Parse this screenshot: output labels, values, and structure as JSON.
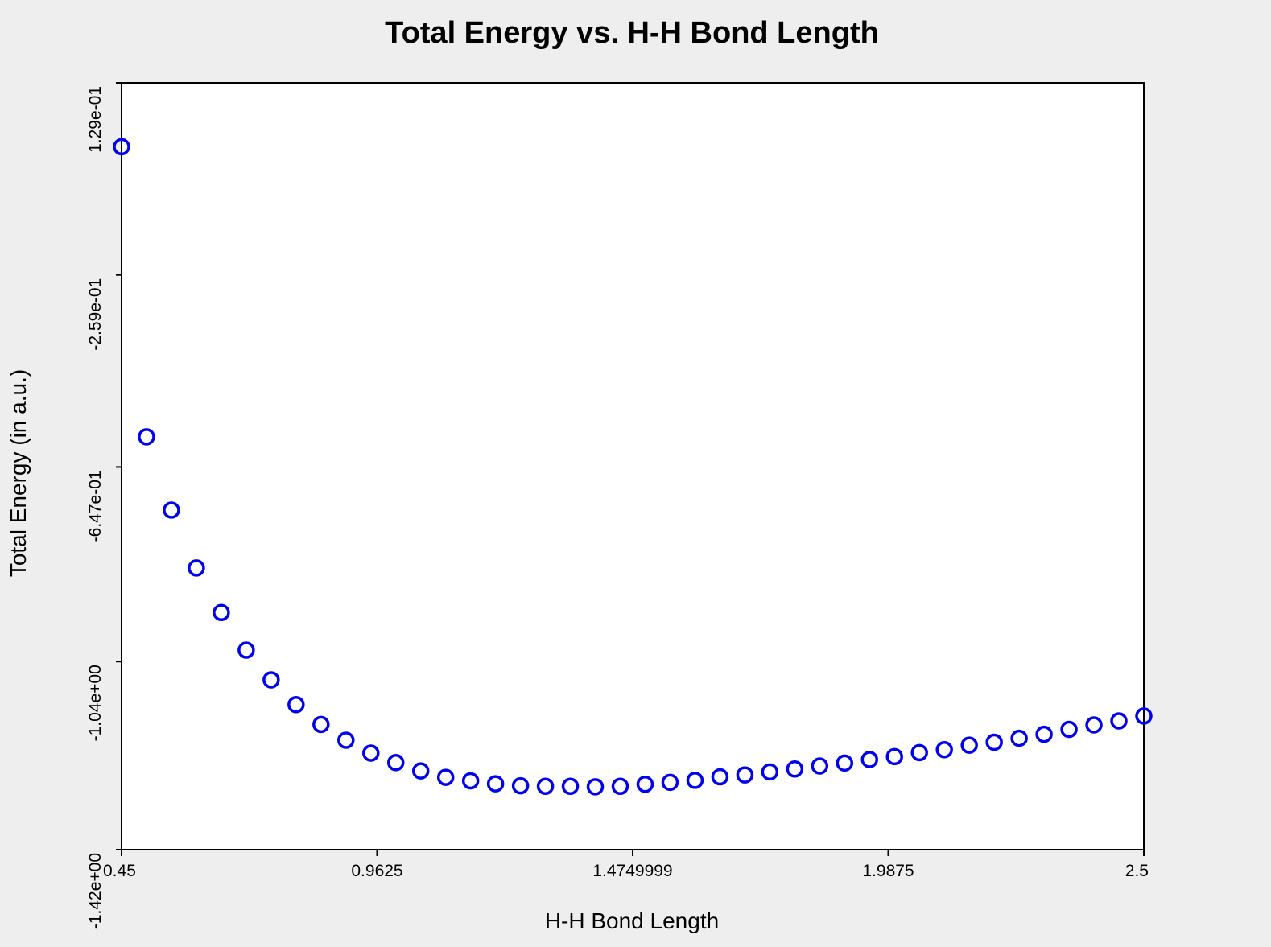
{
  "chart_data": {
    "type": "scatter",
    "title": "Total Energy vs. H-H Bond Length",
    "xlabel": "H-H Bond Length",
    "ylabel": "Total Energy (in a.u.)",
    "xlim": [
      0.45,
      2.5
    ],
    "ylim": [
      -1.42,
      0.129
    ],
    "x_ticks": [
      {
        "value": 0.45,
        "label": "0.45"
      },
      {
        "value": 0.9625,
        "label": "0.9625"
      },
      {
        "value": 1.4749999,
        "label": "1.4749999"
      },
      {
        "value": 1.9875,
        "label": "1.9875"
      },
      {
        "value": 2.5,
        "label": "2.5"
      }
    ],
    "y_ticks": [
      {
        "value": 0.129,
        "label": "1.29e-01"
      },
      {
        "value": -0.259,
        "label": "-2.59e-01"
      },
      {
        "value": -0.647,
        "label": "-6.47e-01"
      },
      {
        "value": -1.04,
        "label": "-1.04e+00"
      },
      {
        "value": -1.42,
        "label": "-1.42e+00"
      }
    ],
    "grid": false,
    "marker": "open-circle",
    "series": [
      {
        "color": "#0000ee",
        "x": [
          0.45,
          0.5,
          0.55,
          0.6,
          0.65,
          0.7,
          0.75,
          0.8,
          0.85,
          0.9,
          0.95,
          1.0,
          1.05,
          1.1,
          1.15,
          1.2,
          1.25,
          1.3,
          1.35,
          1.4,
          1.45,
          1.5,
          1.55,
          1.6,
          1.65,
          1.7,
          1.75,
          1.8,
          1.85,
          1.9,
          1.95,
          2.0,
          2.05,
          2.1,
          2.15,
          2.2,
          2.25,
          2.3,
          2.35,
          2.4,
          2.45,
          2.5
        ],
        "y": [
          0.0,
          -0.586,
          -0.734,
          -0.851,
          -0.941,
          -1.017,
          -1.077,
          -1.127,
          -1.167,
          -1.199,
          -1.225,
          -1.244,
          -1.261,
          -1.274,
          -1.281,
          -1.287,
          -1.291,
          -1.292,
          -1.292,
          -1.293,
          -1.292,
          -1.288,
          -1.284,
          -1.28,
          -1.273,
          -1.269,
          -1.263,
          -1.257,
          -1.251,
          -1.245,
          -1.238,
          -1.232,
          -1.224,
          -1.218,
          -1.209,
          -1.203,
          -1.195,
          -1.187,
          -1.177,
          -1.168,
          -1.16,
          -1.15
        ]
      }
    ]
  }
}
